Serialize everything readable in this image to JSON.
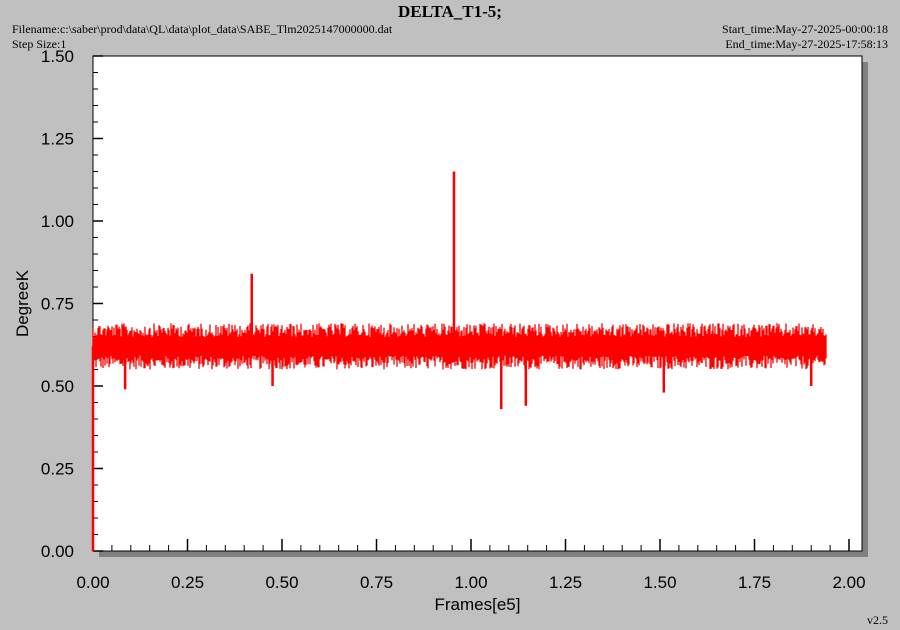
{
  "header": {
    "title": "DELTA_T1-5;",
    "filename": "Filename:c:\\saber\\prod\\data\\QL\\data\\plot_data\\SABE_Tlm2025147000000.dat",
    "step_size": "Step Size:1",
    "start_time": "Start_time:May-27-2025-00:00:18",
    "end_time": "End_time:May-27-2025-17:58:13",
    "version": "v2.5"
  },
  "colors": {
    "background": "#c0c0c0",
    "plot_area": "#ffffff",
    "series": "#ff0000",
    "axis": "#000000"
  },
  "chart_data": {
    "type": "line",
    "title": "DELTA_T1-5;",
    "xlabel": "Frames[e5]",
    "ylabel": "DegreeK",
    "xlim": [
      0,
      2.0
    ],
    "ylim": [
      0,
      1.5
    ],
    "grid": false,
    "x_ticks": [
      "0.00",
      "0.25",
      "0.50",
      "0.75",
      "1.00",
      "1.25",
      "1.50",
      "1.75",
      "2.00"
    ],
    "y_ticks": [
      "0.00",
      "0.25",
      "0.50",
      "0.75",
      "1.00",
      "1.25",
      "1.50"
    ],
    "series": [
      {
        "band": {
          "x_start": 0.0,
          "x_end": 1.94,
          "low": 0.55,
          "high": 0.69,
          "mean": 0.62
        },
        "points": [
          {
            "x": 0.0,
            "y": 0.0
          },
          {
            "x": 0.42,
            "y": 0.84
          },
          {
            "x": 0.955,
            "y": 1.15
          },
          {
            "x": 0.085,
            "y": 0.49
          },
          {
            "x": 0.475,
            "y": 0.5
          },
          {
            "x": 1.08,
            "y": 0.43
          },
          {
            "x": 1.145,
            "y": 0.44
          },
          {
            "x": 1.51,
            "y": 0.48
          },
          {
            "x": 1.9,
            "y": 0.5
          }
        ]
      }
    ]
  }
}
